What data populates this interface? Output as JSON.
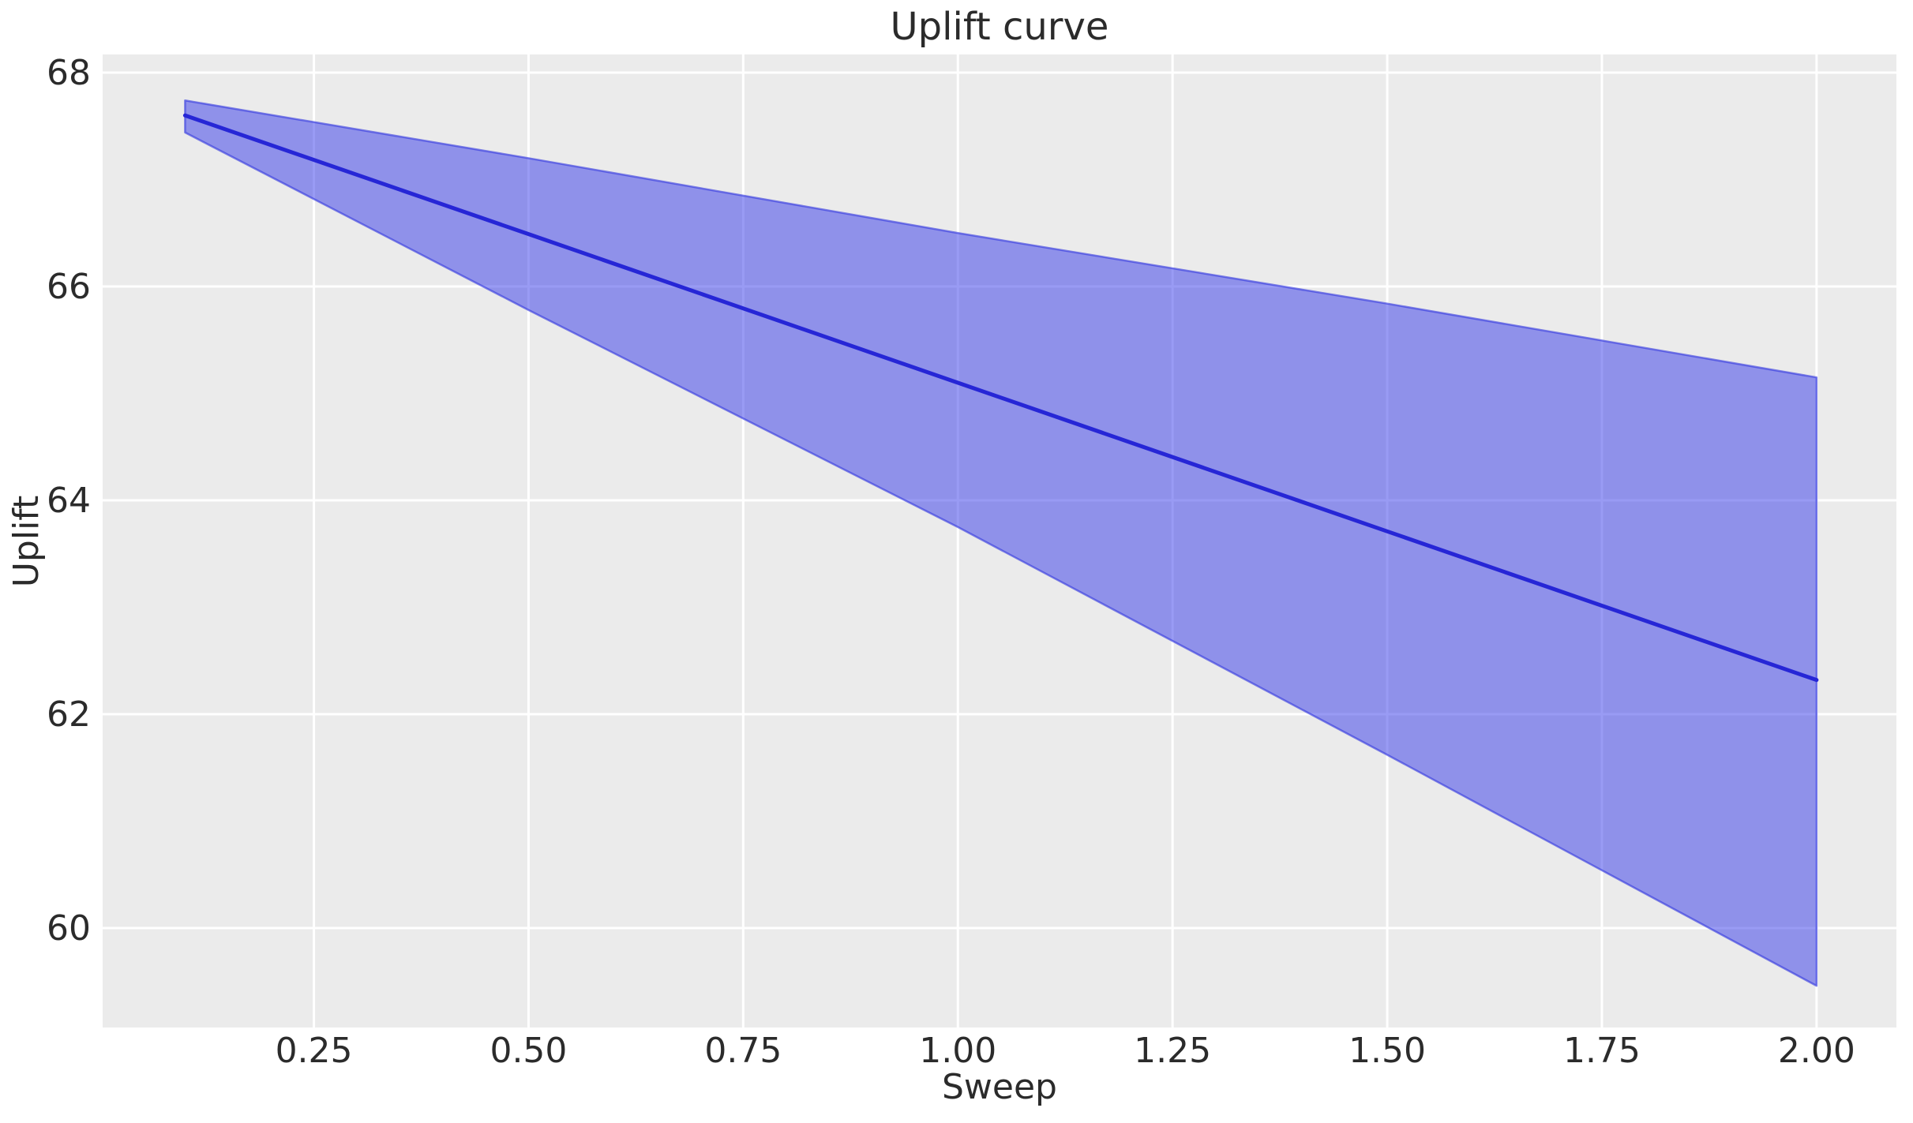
{
  "figure": {
    "title": "Uplift curve"
  },
  "chart_data": {
    "type": "line",
    "title": "Uplift curve",
    "xlabel": "Sweep",
    "ylabel": "Uplift",
    "xlim": [
      0.004,
      2.093
    ],
    "ylim": [
      59.07,
      68.17
    ],
    "grid": true,
    "legend": false,
    "x_ticks": {
      "values": [
        0.25,
        0.5,
        0.75,
        1.0,
        1.25,
        1.5,
        1.75,
        2.0
      ],
      "labels": [
        "0.25",
        "0.50",
        "0.75",
        "1.00",
        "1.25",
        "1.50",
        "1.75",
        "2.00"
      ]
    },
    "y_ticks": {
      "values": [
        60,
        62,
        64,
        66,
        68
      ],
      "labels": [
        "60",
        "62",
        "64",
        "66",
        "68"
      ]
    },
    "series": [
      {
        "name": "uplift-mean",
        "x": [
          0.1,
          0.5,
          1.0,
          1.5,
          2.0
        ],
        "y": [
          67.6,
          66.49,
          65.1,
          63.71,
          62.32
        ],
        "color": "#2626d6",
        "linewidth": 5
      }
    ],
    "band": {
      "name": "confidence-interval",
      "x": [
        0.1,
        0.5,
        1.0,
        1.5,
        2.0
      ],
      "upper": [
        67.74,
        67.2,
        66.5,
        65.84,
        65.15
      ],
      "lower": [
        67.44,
        65.78,
        63.75,
        61.62,
        59.46
      ],
      "fill": "rgba(41,45,231,0.48)",
      "edge": "rgba(47,51,222,0.6)"
    },
    "colors": {
      "figure_bg": "#ffffff",
      "axes_bg": "#ebebeb",
      "grid": "#ffffff",
      "text": "#2b2b2b"
    }
  }
}
